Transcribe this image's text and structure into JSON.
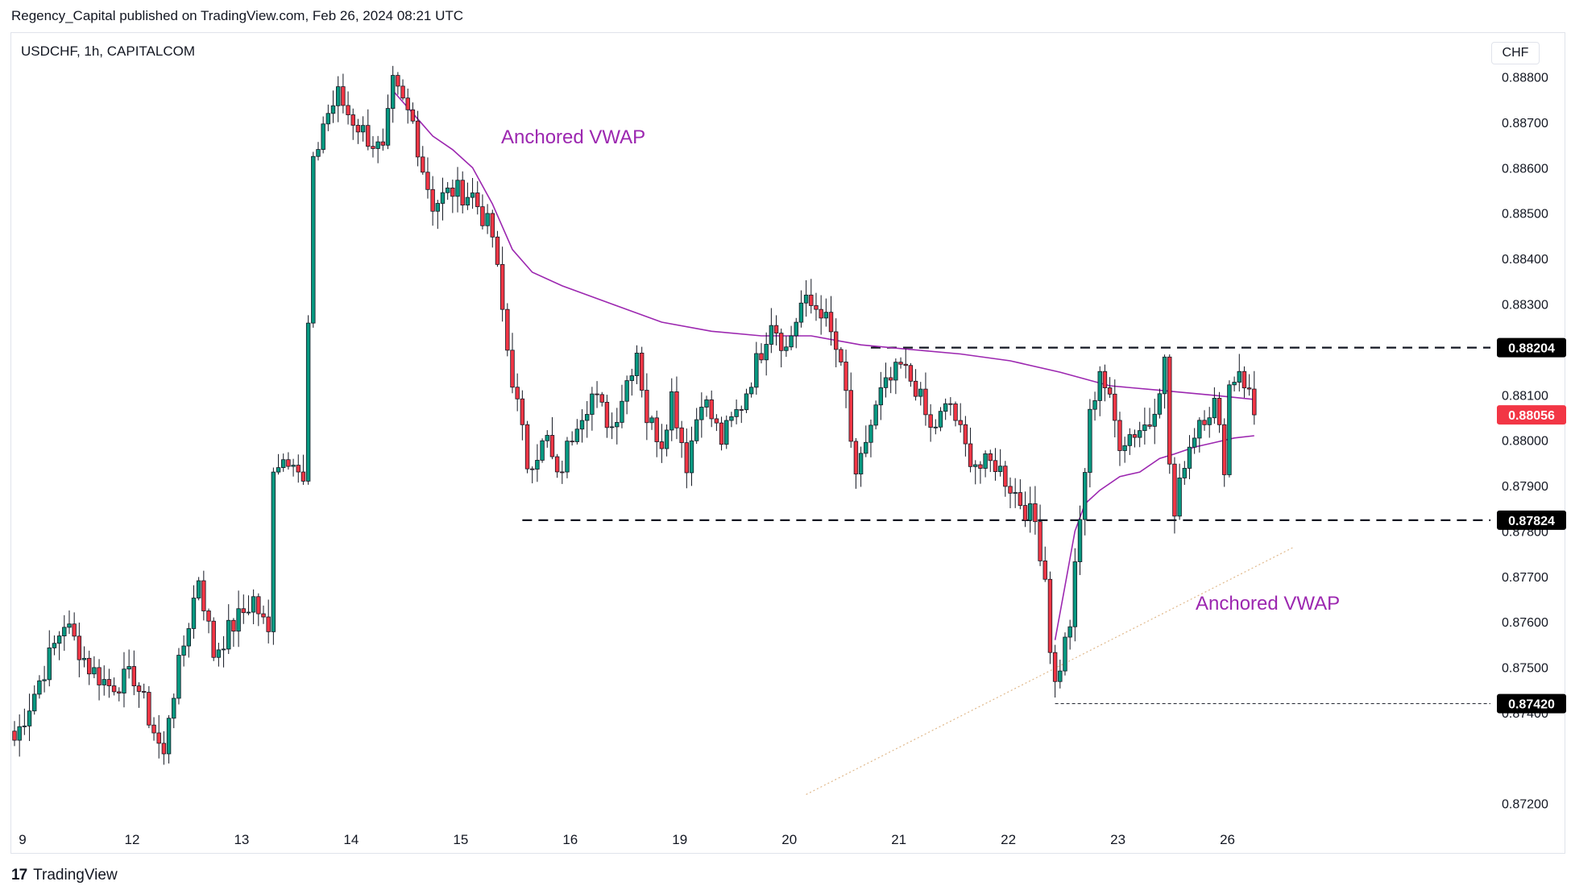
{
  "header": {
    "published": "Regency_Capital published on TradingView.com, Feb 26, 2024 08:21 UTC",
    "symbol": "USDCHF, 1h, CAPITALCOM",
    "currency": "CHF"
  },
  "footer": {
    "logo": "17",
    "brand": "TradingView"
  },
  "colors": {
    "up": "#089981",
    "down": "#f23645",
    "vwap": "#9c27b0",
    "dotted": "#e0b88a",
    "last_price": "#f23645"
  },
  "chart_data": {
    "type": "candlestick",
    "timeframe": "1h",
    "ylim": [
      0.87125,
      0.88895
    ],
    "y_ticks": [
      "0.88800",
      "0.88700",
      "0.88600",
      "0.88500",
      "0.88400",
      "0.88300",
      "0.88100",
      "0.88000",
      "0.87900",
      "0.87700",
      "0.87600",
      "0.87500",
      "0.87200"
    ],
    "y_hidden_ticks": [
      "0.87800",
      "0.87400"
    ],
    "x_labels": [
      {
        "label": "9",
        "bar": 0
      },
      {
        "label": "12",
        "bar": 22
      },
      {
        "label": "13",
        "bar": 44
      },
      {
        "label": "14",
        "bar": 66
      },
      {
        "label": "15",
        "bar": 88
      },
      {
        "label": "16",
        "bar": 110
      },
      {
        "label": "19",
        "bar": 132
      },
      {
        "label": "20",
        "bar": 154
      },
      {
        "label": "21",
        "bar": 176
      },
      {
        "label": "22",
        "bar": 198
      },
      {
        "label": "23",
        "bar": 220
      },
      {
        "label": "26",
        "bar": 242
      }
    ],
    "close_path": [
      [
        0,
        0.8734
      ],
      [
        10,
        0.876
      ],
      [
        15,
        0.875
      ],
      [
        19,
        0.8746
      ],
      [
        24,
        0.8748
      ],
      [
        30,
        0.873
      ],
      [
        31,
        0.874
      ],
      [
        37,
        0.877
      ],
      [
        40,
        0.8753
      ],
      [
        43,
        0.8758
      ],
      [
        48,
        0.8765
      ],
      [
        51,
        0.8757
      ],
      [
        52,
        0.8795
      ],
      [
        56,
        0.8797
      ],
      [
        58,
        0.879
      ],
      [
        60,
        0.886
      ],
      [
        62,
        0.887
      ],
      [
        65,
        0.8876
      ],
      [
        67,
        0.8872
      ],
      [
        70,
        0.8868
      ],
      [
        74,
        0.8863
      ],
      [
        76,
        0.8878
      ],
      [
        80,
        0.887
      ],
      [
        82,
        0.886
      ],
      [
        84,
        0.8852
      ],
      [
        88,
        0.8855
      ],
      [
        92,
        0.8854
      ],
      [
        96,
        0.8845
      ],
      [
        99,
        0.882
      ],
      [
        103,
        0.8795
      ],
      [
        107,
        0.88
      ],
      [
        109,
        0.8791
      ],
      [
        113,
        0.8805
      ],
      [
        116,
        0.881
      ],
      [
        120,
        0.8803
      ],
      [
        125,
        0.882
      ],
      [
        127,
        0.8805
      ],
      [
        130,
        0.88
      ],
      [
        132,
        0.881
      ],
      [
        135,
        0.8795
      ],
      [
        138,
        0.881
      ],
      [
        142,
        0.88
      ],
      [
        146,
        0.8808
      ],
      [
        150,
        0.882
      ],
      [
        152,
        0.8827
      ],
      [
        155,
        0.882
      ],
      [
        158,
        0.883
      ],
      [
        162,
        0.8829
      ],
      [
        165,
        0.882
      ],
      [
        167,
        0.881
      ],
      [
        169,
        0.879
      ],
      [
        171,
        0.88
      ],
      [
        174,
        0.881
      ],
      [
        178,
        0.8816
      ],
      [
        181,
        0.8812
      ],
      [
        184,
        0.8802
      ],
      [
        188,
        0.8808
      ],
      [
        191,
        0.8798
      ],
      [
        194,
        0.8794
      ],
      [
        197,
        0.8795
      ],
      [
        200,
        0.879
      ],
      [
        203,
        0.8785
      ],
      [
        205,
        0.8782
      ],
      [
        207,
        0.877
      ],
      [
        208,
        0.8755
      ],
      [
        209,
        0.8746
      ],
      [
        212,
        0.876
      ],
      [
        214,
        0.8782
      ],
      [
        216,
        0.8805
      ],
      [
        218,
        0.8816
      ],
      [
        220,
        0.8808
      ],
      [
        222,
        0.88
      ],
      [
        225,
        0.8802
      ],
      [
        228,
        0.8804
      ],
      [
        231,
        0.8817
      ],
      [
        232,
        0.8795
      ],
      [
        233,
        0.8783
      ],
      [
        235,
        0.8796
      ],
      [
        238,
        0.8805
      ],
      [
        241,
        0.8808
      ],
      [
        243,
        0.8795
      ],
      [
        244,
        0.8812
      ],
      [
        246,
        0.8816
      ],
      [
        248,
        0.881
      ],
      [
        249,
        0.88056
      ]
    ],
    "vwap_1": {
      "label": "Anchored VWAP",
      "points": [
        [
          76,
          0.8877
        ],
        [
          80,
          0.8872
        ],
        [
          84,
          0.8867
        ],
        [
          88,
          0.8864
        ],
        [
          92,
          0.886
        ],
        [
          96,
          0.8852
        ],
        [
          100,
          0.8842
        ],
        [
          104,
          0.8837
        ],
        [
          110,
          0.8834
        ],
        [
          120,
          0.883
        ],
        [
          130,
          0.8826
        ],
        [
          140,
          0.8824
        ],
        [
          150,
          0.8823
        ],
        [
          160,
          0.8823
        ],
        [
          170,
          0.8821
        ],
        [
          180,
          0.882
        ],
        [
          190,
          0.8819
        ],
        [
          200,
          0.88175
        ],
        [
          210,
          0.8815
        ],
        [
          220,
          0.8812
        ],
        [
          230,
          0.8811
        ],
        [
          240,
          0.881
        ],
        [
          249,
          0.8809
        ]
      ]
    },
    "vwap_2": {
      "label": "Anchored VWAP",
      "points": [
        [
          209,
          0.8756
        ],
        [
          211,
          0.8768
        ],
        [
          213,
          0.878
        ],
        [
          215,
          0.8786
        ],
        [
          218,
          0.8789
        ],
        [
          222,
          0.8792
        ],
        [
          226,
          0.8793
        ],
        [
          230,
          0.8796
        ],
        [
          233,
          0.8797
        ],
        [
          237,
          0.87985
        ],
        [
          241,
          0.87995
        ],
        [
          245,
          0.88005
        ],
        [
          249,
          0.8801
        ]
      ]
    },
    "levels": [
      {
        "label": "0.88204",
        "value": 0.88204,
        "from_bar": 172,
        "style": "dashed"
      },
      {
        "label": "0.87824",
        "value": 0.87824,
        "from_bar": 102,
        "style": "dashed"
      },
      {
        "label": "0.87420",
        "value": 0.8742,
        "from_bar": 209,
        "style": "dotted"
      }
    ],
    "trendline": {
      "from": [
        159,
        0.8722
      ],
      "to": [
        257,
        0.87765
      ],
      "style": "dotted"
    },
    "last_price": "0.88056"
  }
}
